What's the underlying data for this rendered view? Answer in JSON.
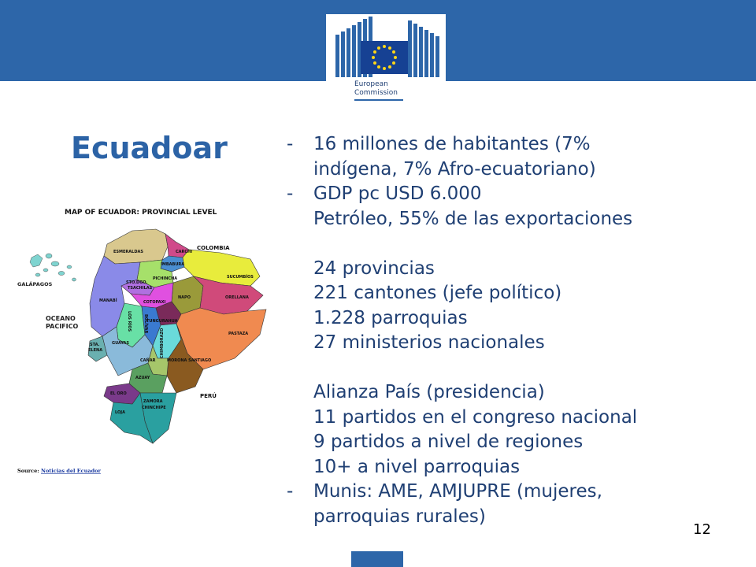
{
  "logo": {
    "line1": "European",
    "line2": "Commission"
  },
  "title": "Ecuadoar",
  "map": {
    "title": "MAP OF ECUADOR: PROVINCIAL LEVEL",
    "source_label": "Source:",
    "source_link": "Noticias del Ecuador",
    "labels": {
      "colombia": "COLOMBIA",
      "peru": "PERÚ",
      "galapagos": "GALÁPAGOS",
      "ocean_1": "OCEANO",
      "ocean_2": "PACIFICO",
      "esmeraldas": "ESMERALDAS",
      "carchi": "CARCHI",
      "imbabura": "IMBABURA",
      "sucumbios": "SUCUMBÍOS",
      "pichincha": "PICHINCHA",
      "sto_1": "STO.DGO.",
      "sto_2": "TSACHILAS",
      "manabi": "MANABÍ",
      "napo": "NAPO",
      "orellana": "ORELLANA",
      "cotopaxi": "COTOPAXI",
      "los_rios": "LOS RÍOS",
      "tungurahua": "TUNGURAHUA",
      "bolivar": "BOLÍVAR",
      "pastaza": "PASTAZA",
      "chimborazo": "CHIMBORAZO",
      "sta_1": "STA.",
      "sta_2": "ELENA",
      "guayas": "GUAYAS",
      "canar": "CAÑAR",
      "morona": "MORONA SANTIAGO",
      "azuay": "AZUAY",
      "el_oro": "EL ORO",
      "zamora_1": "ZAMORA",
      "zamora_2": "CHINCHIPE",
      "loja": "LOJA"
    }
  },
  "bullets": [
    {
      "dash": "-",
      "lines": [
        "16 millones de habitantes (7%",
        "indígena, 7% Afro-ecuatoriano)"
      ]
    },
    {
      "dash": "-",
      "lines": [
        "GDP pc USD 6.000",
        "Petróleo, 55% de las exportaciones",
        "",
        "24 provincias",
        "221 cantones (jefe político)",
        "1.228 parroquias",
        "27 ministerios nacionales",
        "",
        "Alianza País (presidencia)",
        "11 partidos en el congreso nacional",
        "9 partidos a nivel de regiones",
        "10+ a nivel parroquias"
      ]
    },
    {
      "dash": "-",
      "lines": [
        "Munis: AME, AMJUPRE (mujeres,",
        "parroquias rurales)"
      ]
    }
  ],
  "page_number": "12",
  "colors": {
    "header": "#2d66a9",
    "title": "#2c63a6",
    "body_text": "#1f3f73"
  }
}
